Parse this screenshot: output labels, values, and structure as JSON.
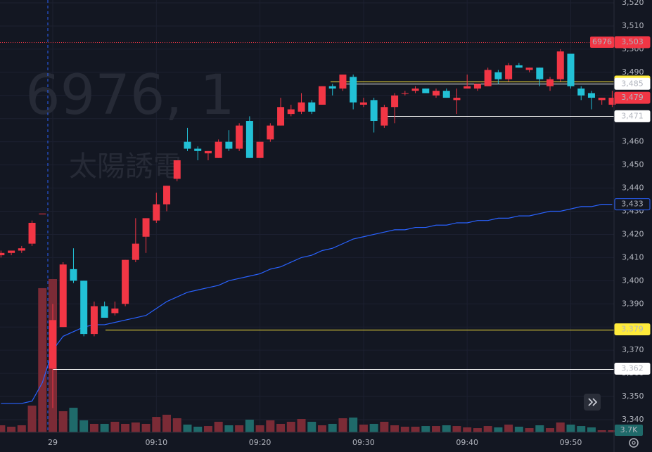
{
  "chart_data": {
    "type": "candlestick",
    "watermark": {
      "symbol": "6976, 1",
      "name": "太陽誘電"
    },
    "categories": [
      null,
      null,
      null,
      null,
      null,
      "29",
      null,
      null,
      null,
      null,
      null,
      null,
      null,
      null,
      null,
      "09:10",
      null,
      null,
      null,
      null,
      null,
      null,
      null,
      null,
      null,
      "09:20",
      null,
      null,
      null,
      null,
      null,
      null,
      null,
      null,
      null,
      "09:30",
      null,
      null,
      null,
      null,
      null,
      null,
      null,
      null,
      null,
      "09:40",
      null,
      null,
      null,
      null,
      null,
      null,
      null,
      null,
      null,
      "09:50",
      null,
      null,
      null,
      null
    ],
    "open": [
      3411,
      3412,
      3413,
      3416,
      3429,
      3362,
      3380,
      3405,
      3400,
      3377,
      3389,
      3386,
      3390,
      3409,
      3419,
      3426,
      3433,
      3444,
      3460,
      3457,
      3455,
      3453,
      3460,
      3457,
      3469,
      3453,
      3461,
      3467,
      3472,
      3473,
      3477,
      3476,
      3484,
      3483,
      3488,
      3476,
      3478,
      3467,
      3475,
      3481,
      3482,
      3483,
      3480,
      3482,
      3478,
      3483,
      3483,
      3484,
      3490,
      3487,
      3493,
      3491,
      3492,
      3484,
      3487,
      3498,
      3483,
      3481,
      3478,
      3476
    ],
    "high": [
      3413,
      3413,
      3415,
      3426,
      3429,
      3390,
      3408,
      3414,
      3400,
      3391,
      3391,
      3391,
      3409,
      3427,
      3427,
      3438,
      3441,
      3452,
      3466,
      3458,
      3456,
      3461,
      3465,
      3468,
      3471,
      3460,
      3468,
      3479,
      3476,
      3481,
      3478,
      3484,
      3485,
      3489,
      3489,
      3479,
      3479,
      3476,
      3481,
      3482,
      3484,
      3483,
      3483,
      3483,
      3483,
      3489,
      3485,
      3492,
      3491,
      3494,
      3494,
      3492,
      3492,
      3488,
      3500,
      3498,
      3484,
      3482,
      3479,
      3482
    ],
    "low": [
      3410,
      3411,
      3412,
      3415,
      3429,
      3345,
      3380,
      3399,
      3376,
      3376,
      3384,
      3385,
      3389,
      3408,
      3412,
      3425,
      3430,
      3443,
      3456,
      3452,
      3452,
      3453,
      3456,
      3456,
      3453,
      3453,
      3460,
      3467,
      3471,
      3472,
      3472,
      3476,
      3480,
      3482,
      3474,
      3475,
      3464,
      3466,
      3468,
      3480,
      3481,
      3481,
      3479,
      3479,
      3472,
      3483,
      3482,
      3484,
      3485,
      3486,
      3492,
      3490,
      3484,
      3482,
      3486,
      3483,
      3478,
      3474,
      3476,
      3475
    ],
    "close": [
      3412,
      3413,
      3414,
      3425,
      3429,
      3383,
      3407,
      3400,
      3377,
      3389,
      3384,
      3388,
      3409,
      3416,
      3427,
      3433,
      3441,
      3452,
      3457,
      3456,
      3456,
      3460,
      3457,
      3467,
      3453,
      3460,
      3467,
      3475,
      3474,
      3477,
      3473,
      3484,
      3483,
      3489,
      3477,
      3477,
      3469,
      3475,
      3480,
      3481,
      3483,
      3481,
      3482,
      3479,
      3479,
      3484,
      3485,
      3491,
      3487,
      3493,
      3492,
      3492,
      3487,
      3487,
      3499,
      3484,
      3480,
      3479,
      3479,
      3479
    ],
    "up_color": "#f23645",
    "down_color": "#22c1d6",
    "volume": [
      12400,
      9900,
      12400,
      47000,
      254000,
      270000,
      37200,
      43300,
      21100,
      14900,
      14900,
      18600,
      14900,
      17300,
      14900,
      27200,
      31000,
      24800,
      13600,
      9900,
      11100,
      18600,
      12400,
      12400,
      22300,
      12400,
      21100,
      14900,
      18600,
      23500,
      18600,
      12400,
      14900,
      24800,
      26000,
      13600,
      14900,
      18600,
      12400,
      9900,
      9900,
      11100,
      11100,
      12400,
      11100,
      8700,
      7400,
      11100,
      8700,
      13600,
      9900,
      7400,
      12400,
      7400,
      17300,
      13600,
      11100,
      8700,
      3700,
      3700
    ],
    "volume_lim": [
      0,
      270000
    ],
    "volume_up_color": "#7b2b36",
    "volume_down_color": "#1f6a6a",
    "volume_last_label": "3.7K",
    "vwap": {
      "color": "#2962ff",
      "label": "3,433",
      "values": [
        3347,
        3347,
        3347,
        3348,
        3356,
        3370,
        3376,
        3378,
        3380,
        3381,
        3381,
        3382,
        3383,
        3384,
        3385,
        3388,
        3391,
        3393,
        3395,
        3396,
        3397,
        3398,
        3400,
        3401,
        3402,
        3403,
        3405,
        3406,
        3408,
        3410,
        3411,
        3413,
        3414,
        3416,
        3418,
        3419,
        3420,
        3421,
        3422,
        3422,
        3423,
        3423,
        3424,
        3424,
        3425,
        3425,
        3426,
        3426,
        3427,
        3427,
        3428,
        3428,
        3429,
        3430,
        3430,
        3431,
        3432,
        3432,
        3433,
        3433
      ]
    },
    "marker": {
      "tag": "6976",
      "value": 3503,
      "label": "3,503",
      "color": "#f23645"
    },
    "current_price": {
      "value": 3479,
      "label": "3,479",
      "color": "#f23645"
    },
    "levels": [
      {
        "value": 3486,
        "label": "3,486",
        "color": "#ffeb3b"
      },
      {
        "value": 3485,
        "label": "3,485",
        "color": "#ffffff"
      },
      {
        "value": 3471,
        "label": "3,471",
        "color": "#ffffff"
      },
      {
        "value": 3379,
        "label": "3,379",
        "color": "#ffeb3b"
      },
      {
        "value": 3362,
        "label": "3,362",
        "color": "#ffffff"
      }
    ],
    "ylim": [
      3340,
      3520
    ],
    "yticks": [
      {
        "value": 3340,
        "label": "3,340"
      },
      {
        "value": 3350,
        "label": "3,350"
      },
      {
        "value": 3360,
        "label": "3,360"
      },
      {
        "value": 3370,
        "label": "3,370"
      },
      {
        "value": 3380,
        "label": "3,380"
      },
      {
        "value": 3390,
        "label": "3,390"
      },
      {
        "value": 3400,
        "label": "3,400"
      },
      {
        "value": 3410,
        "label": "3,410"
      },
      {
        "value": 3420,
        "label": "3,420"
      },
      {
        "value": 3430,
        "label": "3,430"
      },
      {
        "value": 3440,
        "label": "3,440"
      },
      {
        "value": 3450,
        "label": "3,450"
      },
      {
        "value": 3460,
        "label": "3,460"
      },
      {
        "value": 3470,
        "label": "3,470"
      },
      {
        "value": 3480,
        "label": "3,480"
      },
      {
        "value": 3490,
        "label": "3,490"
      },
      {
        "value": 3500,
        "label": "3,500"
      },
      {
        "value": 3510,
        "label": "3,510"
      },
      {
        "value": 3520,
        "label": "3,520"
      }
    ],
    "grid": true
  }
}
